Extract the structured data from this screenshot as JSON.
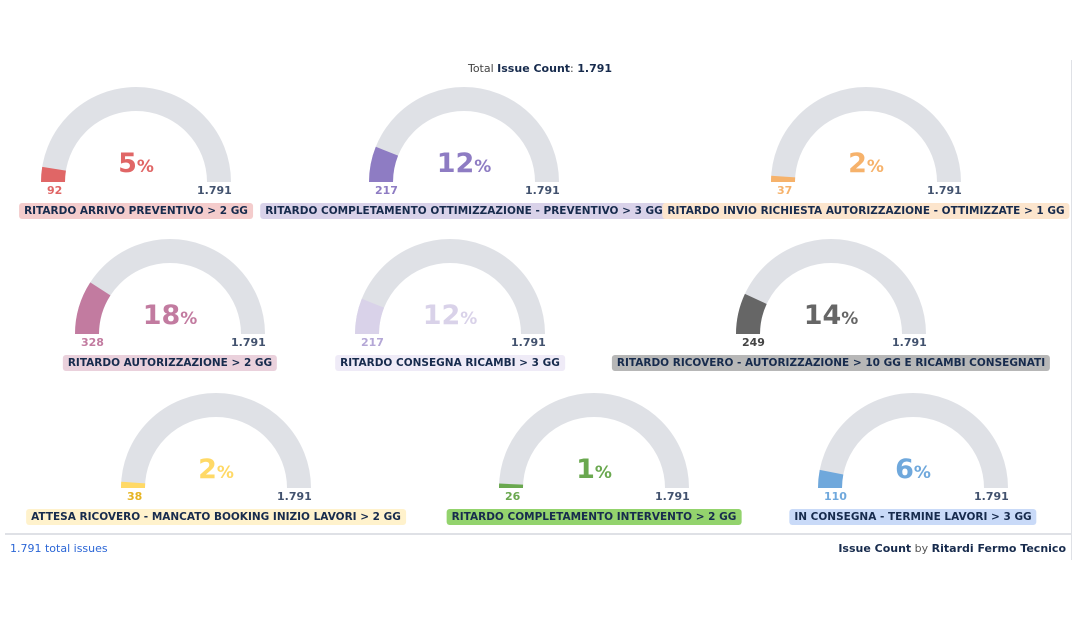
{
  "header": {
    "total_prefix": "Total",
    "total_metric": "Issue Count",
    "total_value": "1.791"
  },
  "footer": {
    "total_issues": "1.791 total issues",
    "metric": "Issue Count",
    "by": "by",
    "group": "Ritardi Fermo Tecnico"
  },
  "gauges": [
    {
      "label": "RITARDO ARRIVO PREVENTIVO > 2 GG",
      "value": "92",
      "max": "1.791",
      "percent": "5",
      "fraction": 0.051,
      "color": "#e06666",
      "badge_color": "#f4cccc"
    },
    {
      "label": "RITARDO COMPLETAMENTO OTTIMIZZAZIONE - PREVENTIVO > 3 GG",
      "value": "217",
      "max": "1.791",
      "percent": "12",
      "fraction": 0.121,
      "color": "#8e7cc3",
      "badge_color": "#d9d2e9"
    },
    {
      "label": "RITARDO INVIO RICHIESTA AUTORIZZAZIONE - OTTIMIZZATE > 1 GG",
      "value": "37",
      "max": "1.791",
      "percent": "2",
      "fraction": 0.021,
      "color": "#f6b26b",
      "badge_color": "#fce5cd"
    },
    {
      "label": "RITARDO AUTORIZZAZIONE > 2 GG",
      "value": "328",
      "max": "1.791",
      "percent": "18",
      "fraction": 0.183,
      "color": "#c27ba0",
      "badge_color": "#ead1dc"
    },
    {
      "label": "RITARDO CONSEGNA RICAMBI > 3 GG",
      "value": "217",
      "max": "1.791",
      "percent": "12",
      "fraction": 0.121,
      "color": "#d9d2e9",
      "badge_color": "#efebf7"
    },
    {
      "label": "RITARDO RICOVERO - AUTORIZZAZIONE > 10 GG E RICAMBI CONSEGNATI",
      "value": "249",
      "max": "1.791",
      "percent": "14",
      "fraction": 0.139,
      "color": "#666666",
      "badge_color": "#b7b7b7"
    },
    {
      "label": "ATTESA RICOVERO - MANCATO BOOKING INIZIO LAVORI > 2 GG",
      "value": "38",
      "max": "1.791",
      "percent": "2",
      "fraction": 0.021,
      "color": "#ffd966",
      "badge_color": "#fff2cc"
    },
    {
      "label": "RITARDO COMPLETAMENTO INTERVENTO > 2 GG",
      "value": "26",
      "max": "1.791",
      "percent": "1",
      "fraction": 0.015,
      "color": "#6aa84f",
      "badge_color": "#93d36d"
    },
    {
      "label": "IN CONSEGNA - TERMINE LAVORI > 3 GG",
      "value": "110",
      "max": "1.791",
      "percent": "6",
      "fraction": 0.061,
      "color": "#6fa8dc",
      "badge_color": "#c9daf8"
    }
  ]
}
